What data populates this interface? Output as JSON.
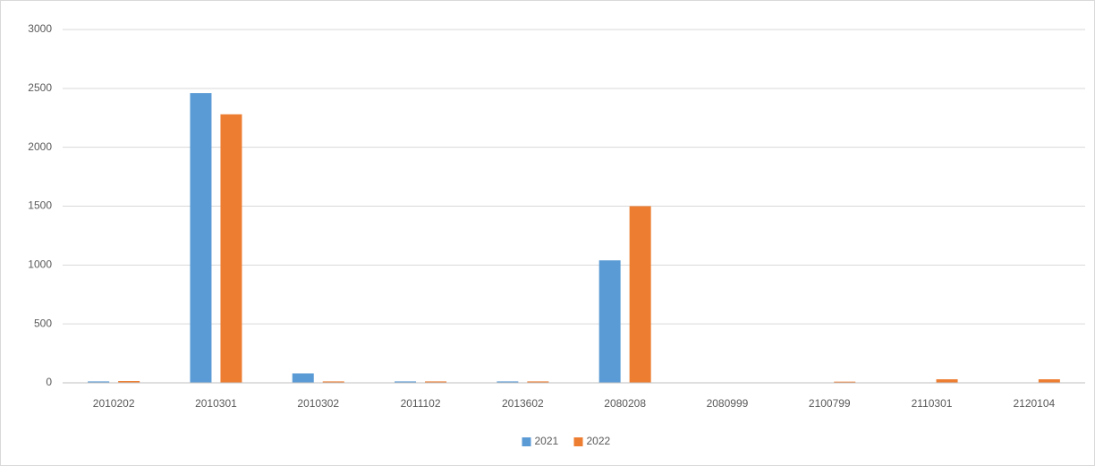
{
  "chart_data": {
    "type": "bar",
    "categories": [
      "2010202",
      "2010301",
      "2010302",
      "2011102",
      "2013602",
      "2080208",
      "2080999",
      "2100799",
      "2110301",
      "2120104"
    ],
    "series": [
      {
        "name": "2021",
        "color": "#5b9bd5",
        "values": [
          12,
          2460,
          80,
          12,
          12,
          1040,
          0,
          0,
          0,
          0
        ]
      },
      {
        "name": "2022",
        "color": "#ed7d31",
        "values": [
          15,
          2280,
          12,
          12,
          12,
          1500,
          0,
          10,
          30,
          30
        ]
      }
    ],
    "yticks": [
      0,
      500,
      1000,
      1500,
      2000,
      2500,
      3000
    ],
    "ylim": [
      0,
      3000
    ],
    "title": "",
    "xlabel": "",
    "ylabel": "",
    "grid": true,
    "legend_position": "bottom"
  }
}
